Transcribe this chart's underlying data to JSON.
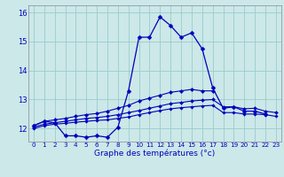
{
  "xlabel": "Graphe des températures (°c)",
  "background_color": "#cce8e8",
  "grid_color": "#99cccc",
  "line_color": "#0000bb",
  "xlim": [
    -0.5,
    23.5
  ],
  "ylim": [
    11.55,
    16.25
  ],
  "yticks": [
    12,
    13,
    14,
    15,
    16
  ],
  "xticks": [
    0,
    1,
    2,
    3,
    4,
    5,
    6,
    7,
    8,
    9,
    10,
    11,
    12,
    13,
    14,
    15,
    16,
    17,
    18,
    19,
    20,
    21,
    22,
    23
  ],
  "series": {
    "main": {
      "x": [
        0,
        1,
        2,
        3,
        4,
        5,
        6,
        7,
        8,
        9,
        10,
        11,
        12,
        13,
        14,
        15,
        16,
        17,
        18,
        19,
        20,
        21,
        22,
        23
      ],
      "y": [
        12.1,
        12.25,
        12.2,
        11.75,
        11.75,
        11.7,
        11.75,
        11.7,
        12.05,
        13.3,
        15.15,
        15.15,
        15.85,
        15.55,
        15.15,
        15.3,
        14.75,
        13.4,
        12.7,
        12.75,
        12.6,
        12.6,
        12.5,
        null
      ]
    },
    "line1": {
      "x": [
        0,
        1,
        2,
        3,
        4,
        5,
        6,
        7,
        8,
        9,
        10,
        11,
        12,
        13,
        14,
        15,
        16,
        17,
        18,
        19,
        20,
        21,
        22,
        23
      ],
      "y": [
        12.1,
        12.25,
        12.3,
        12.35,
        12.42,
        12.48,
        12.52,
        12.6,
        12.7,
        12.8,
        12.95,
        13.05,
        13.15,
        13.25,
        13.3,
        13.35,
        13.3,
        13.3,
        null,
        null,
        null,
        null,
        null,
        null
      ]
    },
    "line2": {
      "x": [
        0,
        1,
        2,
        3,
        4,
        5,
        6,
        7,
        8,
        9,
        10,
        11,
        12,
        13,
        14,
        15,
        16,
        17,
        18,
        19,
        20,
        21,
        22,
        23
      ],
      "y": [
        12.05,
        12.15,
        12.2,
        12.25,
        12.3,
        12.35,
        12.38,
        12.42,
        12.48,
        12.55,
        12.62,
        12.7,
        12.78,
        12.86,
        12.9,
        12.95,
        12.98,
        13.0,
        12.75,
        12.75,
        12.68,
        12.7,
        12.6,
        12.55
      ]
    },
    "line3": {
      "x": [
        0,
        1,
        2,
        3,
        4,
        5,
        6,
        7,
        8,
        9,
        10,
        11,
        12,
        13,
        14,
        15,
        16,
        17,
        18,
        19,
        20,
        21,
        22,
        23
      ],
      "y": [
        12.0,
        12.1,
        12.15,
        12.18,
        12.22,
        12.25,
        12.28,
        12.3,
        12.35,
        12.4,
        12.48,
        12.55,
        12.62,
        12.68,
        12.72,
        12.75,
        12.78,
        12.8,
        12.55,
        12.55,
        12.5,
        12.5,
        12.48,
        12.42
      ]
    }
  }
}
